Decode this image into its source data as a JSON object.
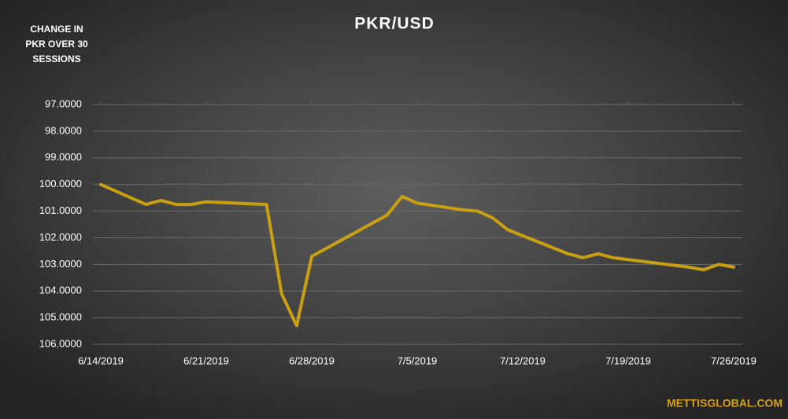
{
  "chart_data": {
    "type": "line",
    "title": "PKR/USD",
    "ylabel": [
      "CHANGE IN",
      "PKR OVER 30",
      "SESSIONS"
    ],
    "watermark": "METTISGLOBAL.COM",
    "x": [
      "6/14/2019",
      "6/17/2019",
      "6/18/2019",
      "6/19/2019",
      "6/20/2019",
      "6/21/2019",
      "6/25/2019",
      "6/26/2019",
      "6/27/2019",
      "6/28/2019",
      "7/3/2019",
      "7/4/2019",
      "7/5/2019",
      "7/8/2019",
      "7/9/2019",
      "7/10/2019",
      "7/11/2019",
      "7/15/2019",
      "7/16/2019",
      "7/17/2019",
      "7/18/2019",
      "7/23/2019",
      "7/24/2019",
      "7/25/2019",
      "7/26/2019"
    ],
    "series": [
      {
        "name": "PKR/USD",
        "color": "#c9a012",
        "values": [
          100.0,
          100.75,
          100.6,
          100.75,
          100.75,
          100.65,
          100.75,
          104.1,
          105.3,
          102.7,
          101.15,
          100.45,
          100.7,
          100.95,
          101.0,
          101.25,
          101.7,
          102.6,
          102.75,
          102.6,
          102.75,
          103.1,
          103.2,
          103.0,
          103.1
        ]
      }
    ],
    "xlim": [
      "6/14/2019",
      "7/26/2019"
    ],
    "xticks": [
      "6/14/2019",
      "6/21/2019",
      "6/28/2019",
      "7/5/2019",
      "7/12/2019",
      "7/19/2019",
      "7/26/2019"
    ],
    "ylim": [
      97,
      106
    ],
    "y_inverted": true,
    "yticks": [
      {
        "value": 97,
        "label": "97.0000"
      },
      {
        "value": 98,
        "label": "98.0000"
      },
      {
        "value": 99,
        "label": "99.0000"
      },
      {
        "value": 100,
        "label": "100.0000"
      },
      {
        "value": 101,
        "label": "101.0000"
      },
      {
        "value": 102,
        "label": "102.0000"
      },
      {
        "value": 103,
        "label": "103.0000"
      },
      {
        "value": 104,
        "label": "104.0000"
      },
      {
        "value": 105,
        "label": "105.0000"
      },
      {
        "value": 106,
        "label": "106.0000"
      }
    ],
    "grid": true
  }
}
